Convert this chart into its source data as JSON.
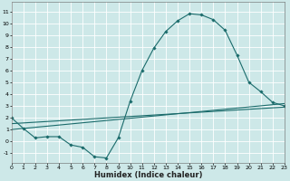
{
  "bg_color": "#cde8e8",
  "grid_color": "#ffffff",
  "line_color": "#1a6b6b",
  "xlabel": "Humidex (Indice chaleur)",
  "xlim": [
    0,
    23
  ],
  "ylim": [
    -1.8,
    11.8
  ],
  "xticks": [
    0,
    1,
    2,
    3,
    4,
    5,
    6,
    7,
    8,
    9,
    10,
    11,
    12,
    13,
    14,
    15,
    16,
    17,
    18,
    19,
    20,
    21,
    22,
    23
  ],
  "yticks": [
    -1,
    0,
    1,
    2,
    3,
    4,
    5,
    6,
    7,
    8,
    9,
    10,
    11
  ],
  "line1_x": [
    0,
    1,
    2,
    3,
    4,
    5,
    6,
    7,
    8,
    9,
    10,
    11,
    12,
    13,
    14,
    15,
    16,
    17,
    18,
    19,
    20,
    21,
    22,
    23
  ],
  "line1_y": [
    2.0,
    1.1,
    0.3,
    0.4,
    0.4,
    -0.3,
    -0.5,
    -1.3,
    -1.4,
    0.3,
    3.4,
    6.0,
    7.9,
    9.3,
    10.2,
    10.8,
    10.7,
    10.3,
    9.4,
    7.3,
    5.0,
    4.2,
    3.3,
    3.0
  ],
  "line2_x": [
    0,
    23
  ],
  "line2_y": [
    1.5,
    2.9
  ],
  "line3_x": [
    0,
    23
  ],
  "line3_y": [
    1.0,
    3.2
  ],
  "xlabel_fontsize": 6.0,
  "tick_fontsize": 4.5,
  "marker_size": 1.8,
  "line_width": 0.8
}
